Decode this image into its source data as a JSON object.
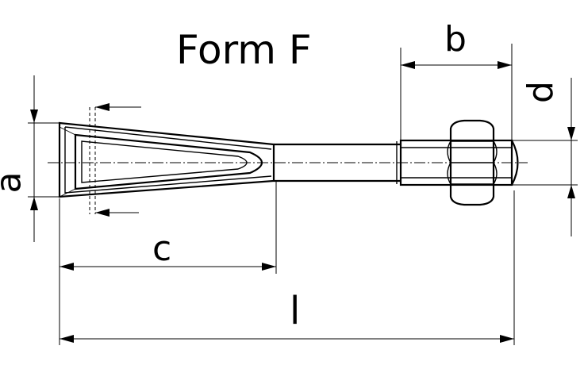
{
  "title": "Form F",
  "dimensions": {
    "a": "a",
    "b": "b",
    "c": "c",
    "d": "d",
    "l": "l"
  },
  "colors": {
    "line": "#000000",
    "background": "#ffffff"
  }
}
